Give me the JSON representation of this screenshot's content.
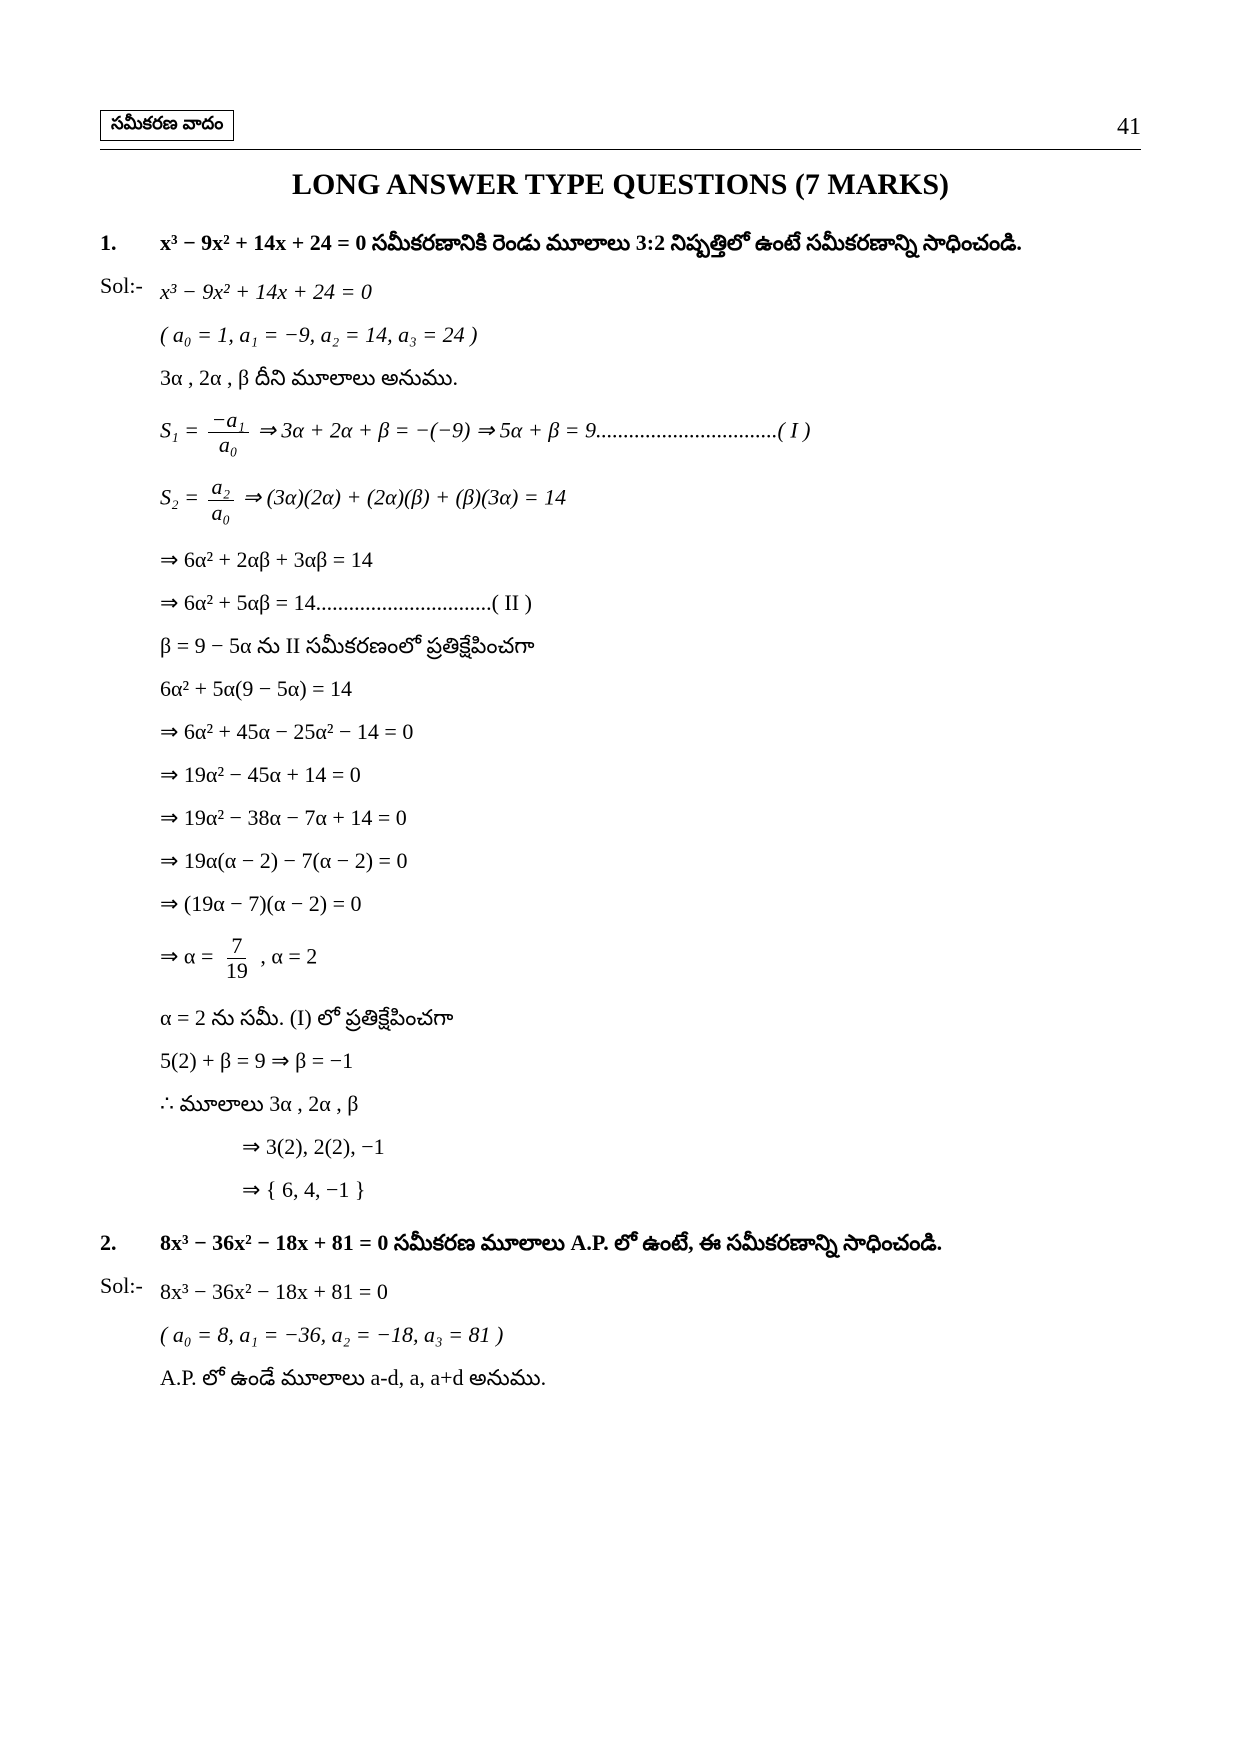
{
  "header": {
    "chapter_label": "సమీకరణ వాదం",
    "page_number": "41"
  },
  "title": "LONG ANSWER TYPE QUESTIONS (7 MARKS)",
  "q1": {
    "number": "1.",
    "eq": "x³ − 9x² + 14x + 24 = 0",
    "tail": "  సమీకరణానికి రెండు మూలాలు 3:2 నిష్పత్తిలో ఉంటే సమీకరణాన్ని సాధించండి."
  },
  "sol_label": "Sol:-",
  "s1": {
    "l1": "x³ − 9x² + 14x + 24 = 0",
    "l2": "( a₀ = 1,  a₁ = −9,  a₂ = 14, a₃ = 24 )",
    "l3": "3α ,  2α ,  β   దీని మూలాలు అనుము.",
    "l4_pre": "S₁ = ",
    "l4_num": "−a₁",
    "l4_den": "a₀",
    "l4_post": " ⇒ 3α + 2α + β = −(−9)  ⇒ 5α + β = 9.................................( I )",
    "l5_pre": "S₂ = ",
    "l5_num": "a₂",
    "l5_den": "a₀",
    "l5_post": " ⇒ (3α)(2α) + (2α)(β) + (β)(3α) = 14",
    "l6": "⇒ 6α² + 2αβ + 3αβ = 14",
    "l7": "⇒ 6α² + 5αβ = 14................................( II )",
    "l8": "β = 9 − 5α  ను  II సమీకరణంలో ప్రతిక్షేపించగా",
    "l9": "6α² + 5α(9 − 5α) = 14",
    "l10": "⇒ 6α² + 45α − 25α² − 14 = 0",
    "l11": "⇒ 19α² − 45α + 14 = 0",
    "l12": "⇒ 19α² − 38α − 7α + 14 = 0",
    "l13": "⇒ 19α(α − 2) − 7(α − 2) = 0",
    "l14": "⇒ (19α − 7)(α − 2) = 0",
    "l15_pre": "⇒ α = ",
    "l15_num": "7",
    "l15_den": "19",
    "l15_post": " ,     α = 2",
    "l16": "α = 2  ను సమీ. (I) లో ప్రతిక్షేపించగా",
    "l17": "5(2) + β = 9 ⇒ β = −1",
    "l18": "∴ మూలాలు 3α , 2α , β",
    "l19": "⇒ 3(2), 2(2), −1",
    "l20": "⇒ { 6, 4, −1 }"
  },
  "q2": {
    "number": "2.",
    "eq": "8x³ − 36x² − 18x + 81 = 0",
    "tail": "  సమీకరణ మూలాలు A.P. లో ఉంటే, ఈ సమీకరణాన్ని సాధించండి."
  },
  "s2": {
    "l1": "8x³ − 36x² − 18x + 81 = 0",
    "l2": "( a₀ = 8,  a₁ = −36,  a₂ = −18,  a₃ = 81 )",
    "l3": "A.P. లో ఉండే మూలాలు a-d,  a,  a+d అనుము."
  }
}
